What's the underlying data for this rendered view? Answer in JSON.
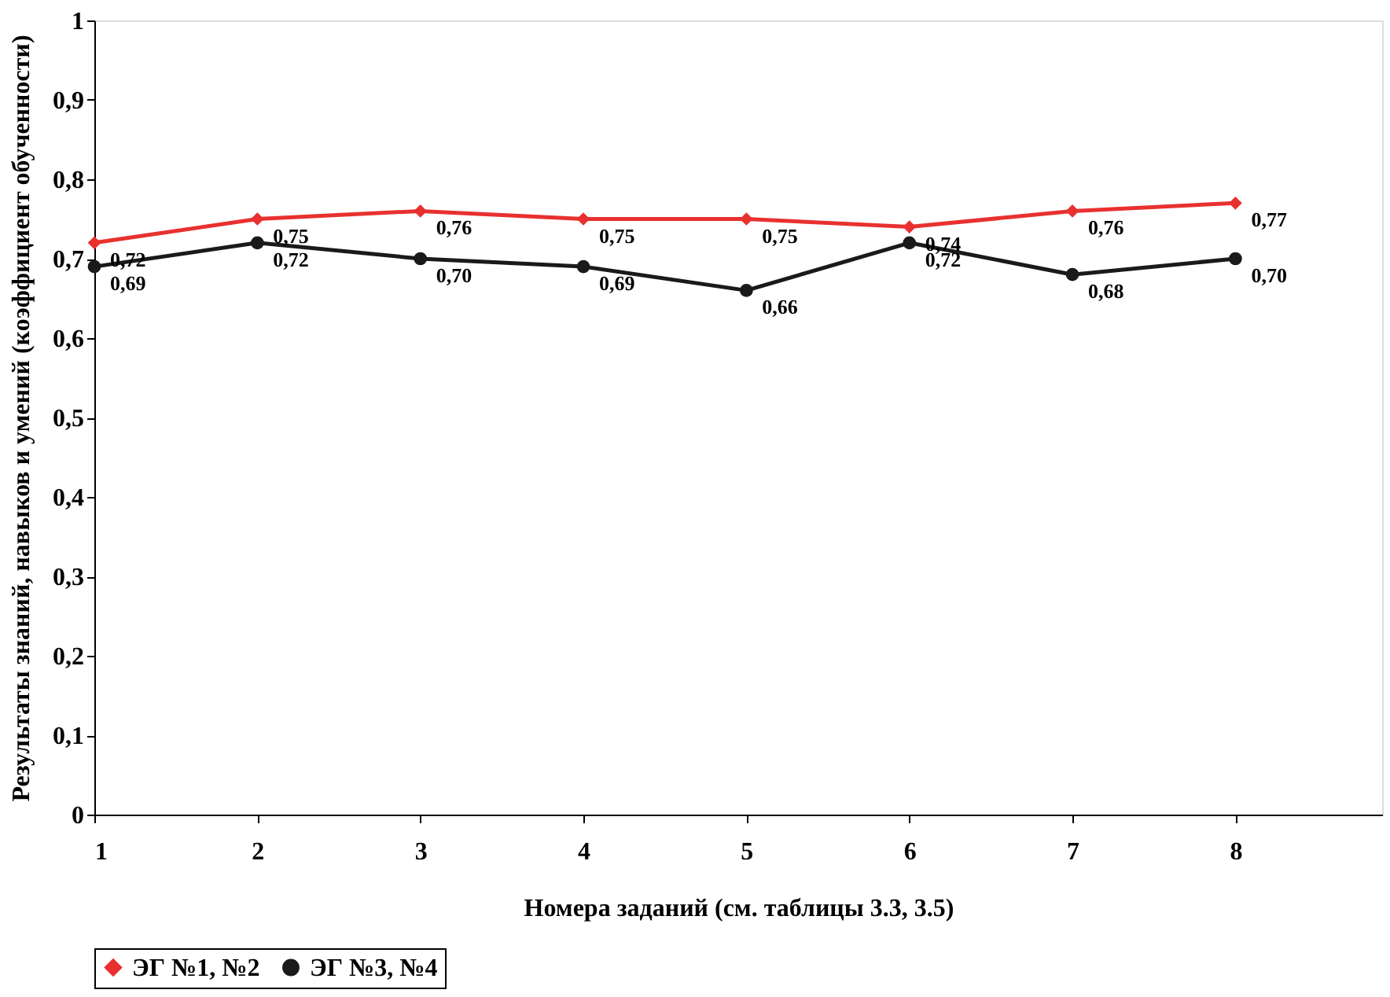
{
  "chart_data": {
    "type": "line",
    "xlabel": "Номера заданий (см. таблицы 3.3, 3.5)",
    "ylabel": "Результаты знаний, навыков и умений (коэффициент обученности)",
    "x": [
      1,
      2,
      3,
      4,
      5,
      6,
      7,
      8
    ],
    "series": [
      {
        "name": "ЭГ №1, №2",
        "color": "#e8312f",
        "marker": "diamond",
        "values": [
          0.72,
          0.75,
          0.76,
          0.75,
          0.75,
          0.74,
          0.76,
          0.77
        ],
        "value_labels": [
          "0,72",
          "0,75",
          "0,76",
          "0,75",
          "0,75",
          "0,74",
          "0,76",
          "0,77"
        ]
      },
      {
        "name": "ЭГ №3, №4",
        "color": "#1a1a1a",
        "marker": "circle",
        "values": [
          0.69,
          0.72,
          0.7,
          0.69,
          0.66,
          0.72,
          0.68,
          0.7
        ],
        "value_labels": [
          "0,69",
          "0,72",
          "0,70",
          "0,69",
          "0,66",
          "0,72",
          "0,68",
          "0,70"
        ]
      }
    ],
    "xlim": [
      1,
      8.9
    ],
    "xticks": [
      1,
      2,
      3,
      4,
      5,
      6,
      7,
      8
    ],
    "ylim": [
      0,
      1
    ],
    "yticks": [
      0,
      {
        "value": 0.1,
        "label": "0,1"
      },
      {
        "value": 0.2,
        "label": "0,2"
      },
      {
        "value": 0.3,
        "label": "0,3"
      },
      {
        "value": 0.4,
        "label": "0,4"
      },
      {
        "value": 0.5,
        "label": "0,5"
      },
      {
        "value": 0.6,
        "label": "0,6"
      },
      {
        "value": 0.7,
        "label": "0,7"
      },
      {
        "value": 0.8,
        "label": "0,8"
      },
      {
        "value": 0.9,
        "label": "0,9"
      },
      1
    ],
    "grid": false,
    "legend": "bottom",
    "line_style": "solid"
  }
}
